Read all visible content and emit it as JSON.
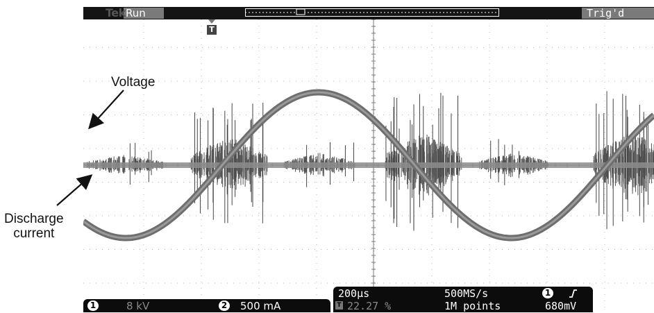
{
  "annotations": {
    "voltage": "Voltage",
    "discharge_line1": "Discharge",
    "discharge_line2": "current"
  },
  "topbar": {
    "brand": "Tek",
    "run_state": "Run",
    "trigger_state": "Trig'd"
  },
  "trigger_marker": "T",
  "channels": [
    {
      "badge": "1",
      "scale": "8 kV"
    },
    {
      "badge": "2",
      "scale": "500 mA"
    }
  ],
  "timebase": {
    "time_per_div": "200µs",
    "sample_rate": "500MS/s",
    "trigger_position": "22.27 %",
    "record_length": "1M points",
    "trigger_source": "1",
    "trigger_slope_icon": "rising-edge-icon",
    "trigger_level": "680mV",
    "trigger_pos_icon": "T"
  },
  "colors": {
    "screen_bg": "#ffffff",
    "trace": "#6e6e6e",
    "trace_core": "#9a9a9a",
    "bar_bg": "#141414",
    "highlight": "#7a7a7a"
  }
}
